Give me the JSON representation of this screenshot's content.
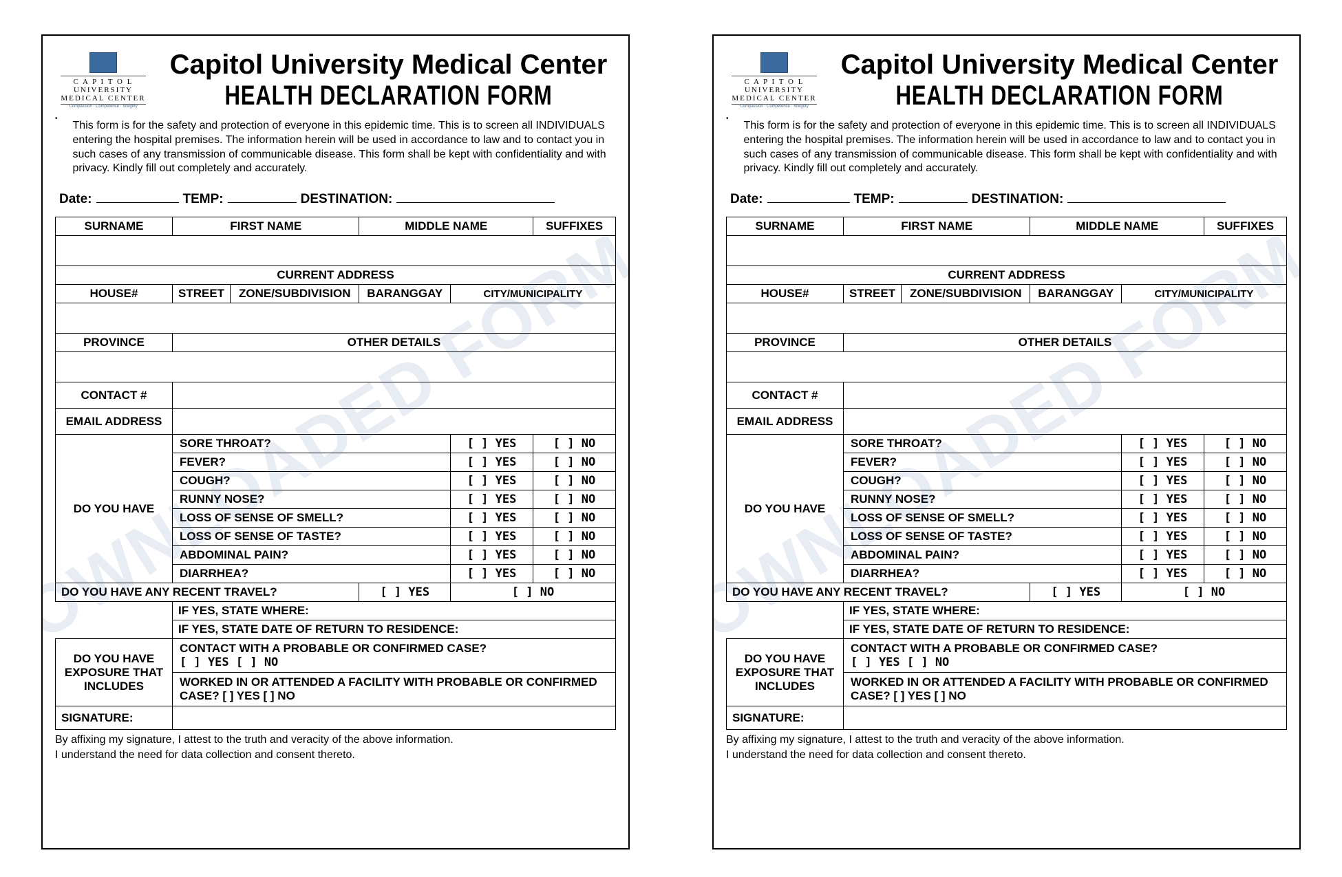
{
  "logo": {
    "top": "C A P I T O L",
    "mid": "UNIVERSITY",
    "bot": "MEDICAL CENTER",
    "tag": "Compassion · Competence · Integrity"
  },
  "title1": "Capitol University Medical Center",
  "title2": "HEALTH DECLARATION FORM",
  "intro": "This form is for the safety and protection of everyone in this epidemic time. This is to screen all INDIVIDUALS entering the hospital premises. The information herein will be used in accordance to law and to contact you in such cases of any transmission of communicable disease. This form shall be kept with confidentiality and with privacy. Kindly fill out completely and accurately.",
  "watermark": "DOWNLOADED FORM",
  "labels": {
    "date": "Date:",
    "temp": "TEMP:",
    "dest": "DESTINATION:",
    "surname": "SURNAME",
    "firstname": "FIRST NAME",
    "middlename": "MIDDLE NAME",
    "suffixes": "SUFFIXES",
    "curaddr": "CURRENT ADDRESS",
    "house": "HOUSE#",
    "street": "STREET",
    "zone": "ZONE/SUBDIVISION",
    "brgy": "BARANGGAY",
    "city": "CITY/MUNICIPALITY",
    "province": "PROVINCE",
    "other": "OTHER DETAILS",
    "contact": "CONTACT #",
    "email": "EMAIL ADDRESS",
    "doyou": "DO YOU HAVE",
    "travel": "DO YOU HAVE ANY RECENT TRAVEL?",
    "ifwhere": "IF YES, STATE WHERE:",
    "ifdate": "IF YES, STATE DATE OF RETURN TO RESIDENCE:",
    "exposure": "DO YOU HAVE EXPOSURE THAT INCLUDES",
    "contactcase": "CONTACT WITH A PROBABLE OR CONFIRMED CASE?",
    "worked": "WORKED IN OR ATTENDED A FACILITY WITH PROBABLE OR CONFIRMED CASE?   [  ] YES    [   ] NO",
    "sig": "SIGNATURE:",
    "yes": "[   ] YES",
    "no": "[   ] NO",
    "yesno": "[  ] YES     [   ] NO"
  },
  "symptoms": [
    "SORE THROAT?",
    "FEVER?",
    "COUGH?",
    "RUNNY NOSE?",
    "LOSS OF SENSE OF SMELL?",
    "LOSS OF SENSE OF TASTE?",
    "ABDOMINAL PAIN?",
    "DIARRHEA?"
  ],
  "attest1": "By affixing my signature, I attest to the truth and veracity of the above information.",
  "attest2": "I understand the need for data collection and consent thereto."
}
